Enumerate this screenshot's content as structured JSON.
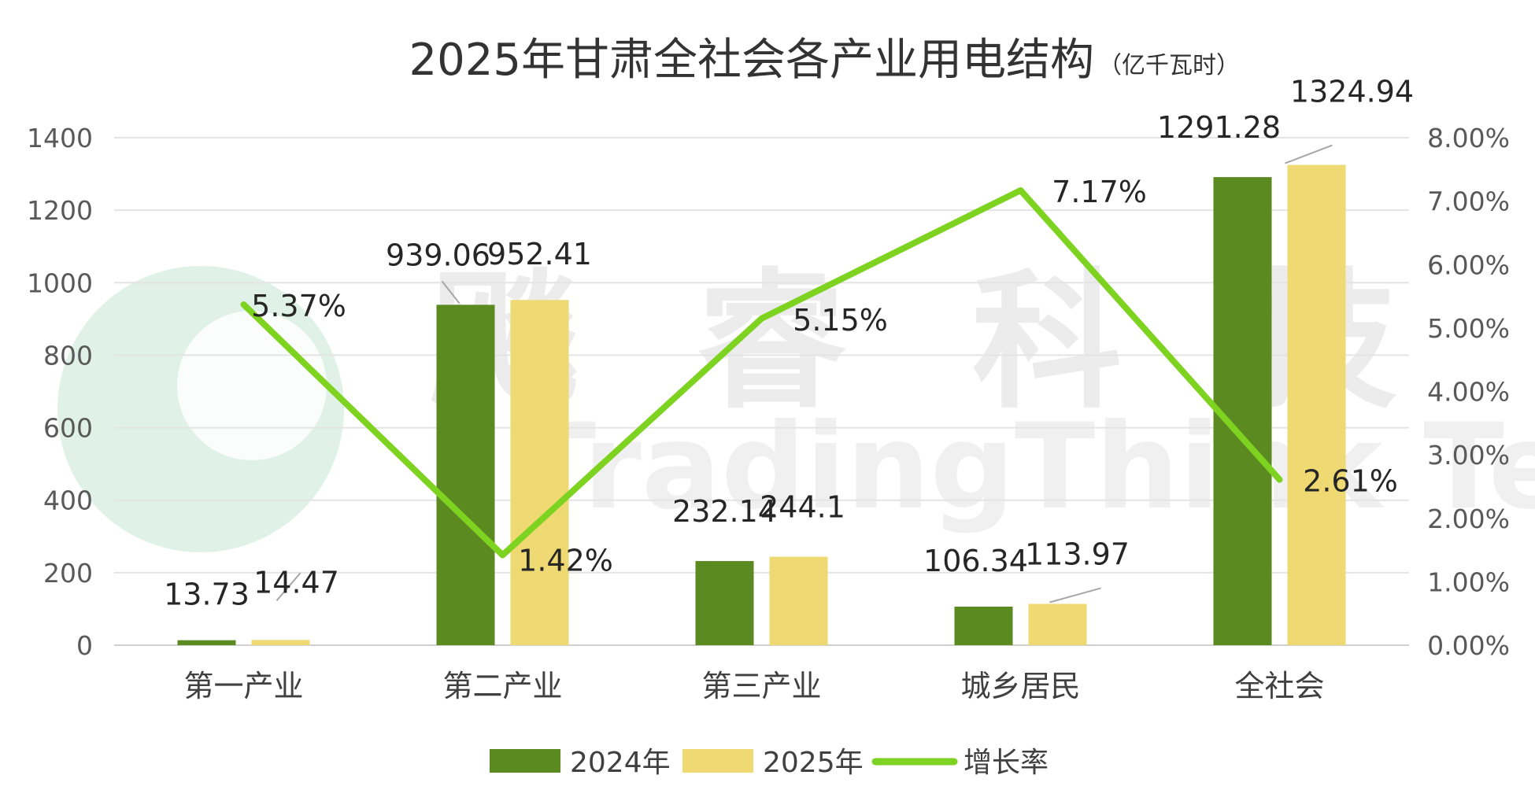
{
  "chart_data": {
    "type": "bar",
    "title": "2025年甘肃全社会各产业用电结构",
    "subtitle": "（亿千瓦时）",
    "categories": [
      "第一产业",
      "第二产业",
      "第三产业",
      "城乡居民",
      "全社会"
    ],
    "series": [
      {
        "name": "2024年",
        "type": "bar",
        "axis": "left",
        "color": "#5b8a21",
        "values": [
          13.73,
          939.06,
          232.14,
          106.34,
          1291.28
        ],
        "labels": [
          "13.73",
          "939.06",
          "232.14",
          "106.34",
          "1291.28"
        ]
      },
      {
        "name": "2025年",
        "type": "bar",
        "axis": "left",
        "color": "#efd972",
        "values": [
          14.47,
          952.41,
          244.1,
          113.97,
          1324.94
        ],
        "labels": [
          "14.47",
          "952.41",
          "244.1",
          "113.97",
          "1324.94"
        ]
      },
      {
        "name": "增长率",
        "type": "line",
        "axis": "right",
        "color": "#7ed321",
        "values": [
          5.37,
          1.42,
          5.15,
          7.17,
          2.61
        ],
        "labels": [
          "5.37%",
          "1.42%",
          "5.15%",
          "7.17%",
          "2.61%"
        ]
      }
    ],
    "y_left": {
      "min": 0,
      "max": 1400,
      "ticks": [
        "0",
        "200",
        "400",
        "600",
        "800",
        "1000",
        "1200",
        "1400"
      ]
    },
    "y_right": {
      "min": 0,
      "max": 8,
      "unit": "%",
      "ticks": [
        "0.00%",
        "1.00%",
        "2.00%",
        "3.00%",
        "4.00%",
        "5.00%",
        "6.00%",
        "7.00%",
        "8.00%"
      ]
    },
    "grid": true,
    "legend_position": "bottom",
    "watermark": {
      "text_cn": [
        "飚",
        "睿",
        "科",
        "技"
      ],
      "text_en": "TradingThink Technology"
    }
  }
}
